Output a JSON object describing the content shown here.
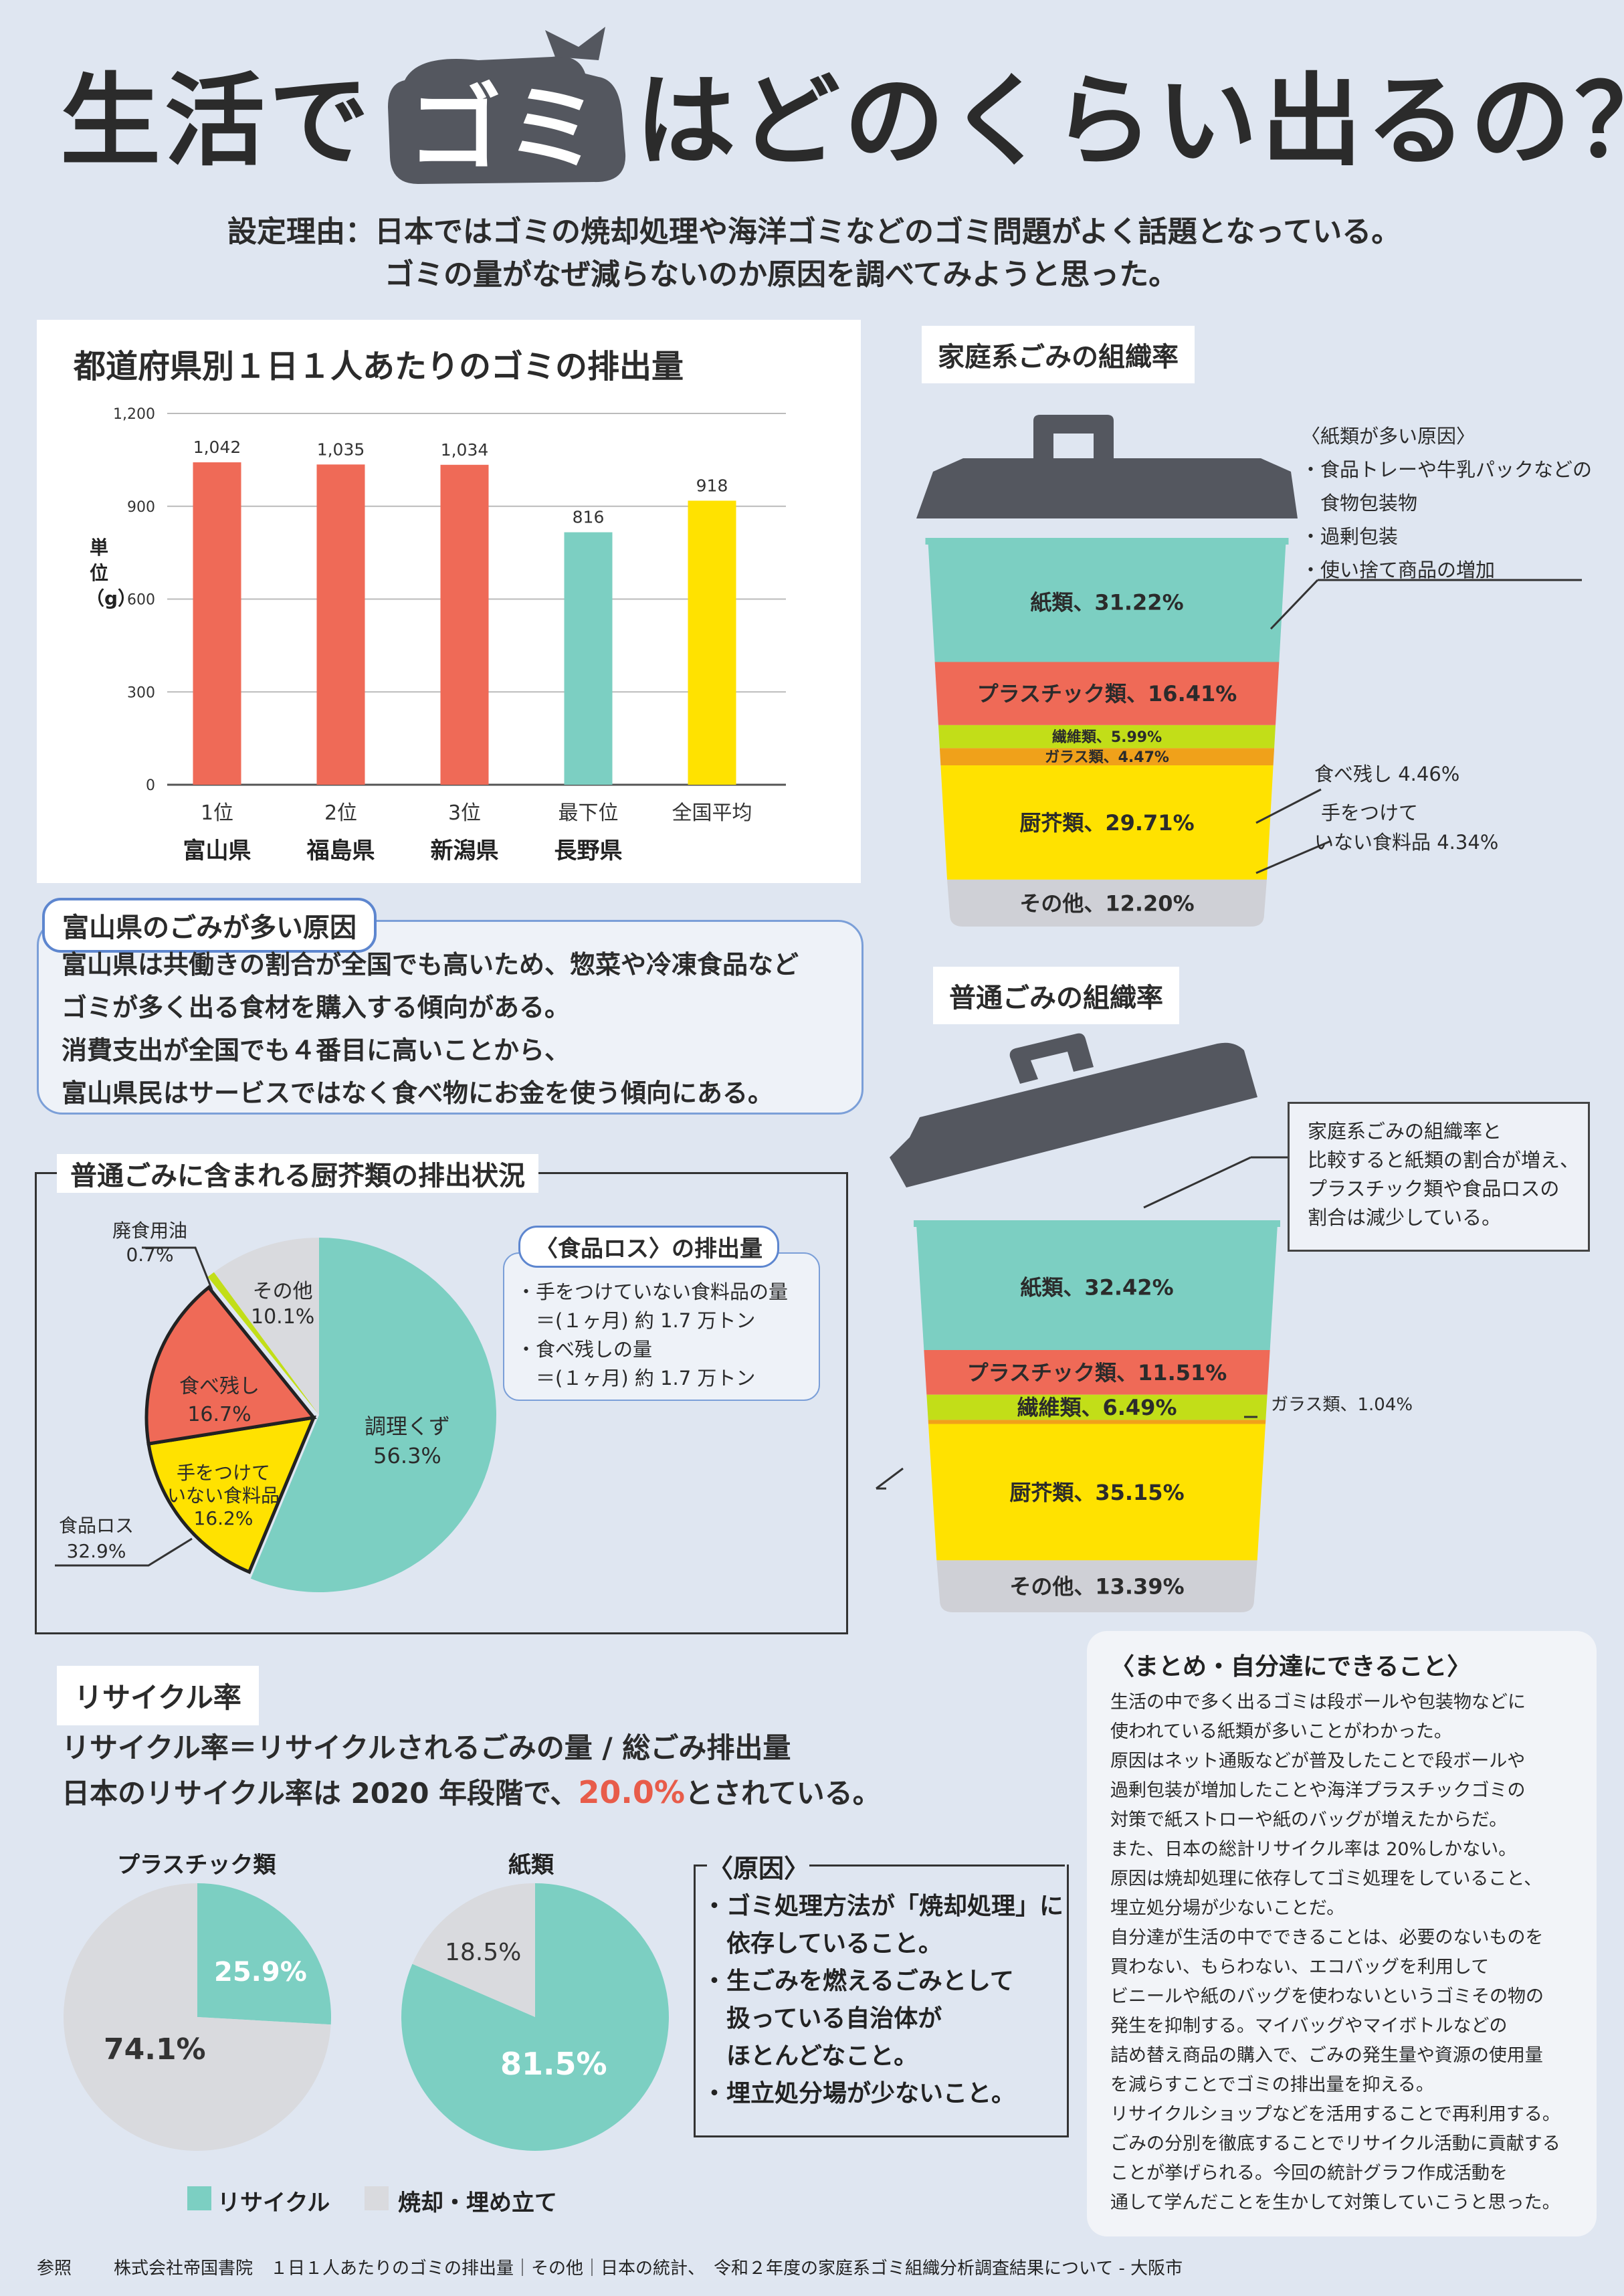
{
  "title": {
    "part1": "生活で",
    "highlight": "ゴミ",
    "part2": "はどのくらい出るの？"
  },
  "reason": {
    "line1": "設定理由：日本ではゴミの焼却処理や海洋ゴミなどのゴミ問題がよく話題となっている。",
    "line2": "ゴミの量がなぜ減らないのか原因を調べてみようと思った。"
  },
  "chart_data": [
    {
      "type": "bar",
      "title": "都道府県別１日１人あたりのゴミの排出量",
      "ylabel": "単位（g）",
      "ylim": [
        0,
        1200
      ],
      "yticks": [
        "0",
        "300",
        "600",
        "900",
        "1,200"
      ],
      "categories": [
        "1位 富山県",
        "2位 福島県",
        "3位 新潟県",
        "最下位 長野県",
        "全国平均"
      ],
      "rank_labels": [
        "1位",
        "2位",
        "3位",
        "最下位",
        "全国平均"
      ],
      "pref_labels": [
        "富山県",
        "福島県",
        "新潟県",
        "長野県",
        ""
      ],
      "values": [
        1042,
        1035,
        1034,
        816,
        918
      ],
      "value_labels": [
        "1,042",
        "1,035",
        "1,034",
        "816",
        "918"
      ],
      "colors": [
        "#ef6a57",
        "#ef6a57",
        "#ef6a57",
        "#7ccfc2",
        "#ffe200"
      ]
    },
    {
      "type": "bar",
      "subtype": "stacked-100",
      "title": "家庭系ごみの組織率",
      "segments": [
        {
          "name": "紙類",
          "value": 31.22,
          "label": "紙類、31.22%",
          "color": "#7ccfc2"
        },
        {
          "name": "プラスチック類",
          "value": 16.41,
          "label": "プラスチック類、16.41%",
          "color": "#ef6a57"
        },
        {
          "name": "繊維類",
          "value": 5.99,
          "label": "繊維類、5.99%",
          "color": "#c2de18"
        },
        {
          "name": "ガラス類",
          "value": 4.47,
          "label": "ガラス類、4.47%",
          "color": "#f0a11a"
        },
        {
          "name": "厨芥類",
          "value": 29.71,
          "label": "厨芥類、29.71%",
          "color": "#ffe200"
        },
        {
          "name": "その他",
          "value": 12.2,
          "label": "その他、12.20%",
          "color": "#cfd0d6"
        }
      ],
      "annotations": [
        "食べ残し 4.46%",
        "手をつけて",
        "いない食料品 4.34%"
      ]
    },
    {
      "type": "bar",
      "subtype": "stacked-100",
      "title": "普通ごみの組織率",
      "segments": [
        {
          "name": "紙類",
          "value": 32.42,
          "label": "紙類、32.42%",
          "color": "#7ccfc2"
        },
        {
          "name": "プラスチック類",
          "value": 11.51,
          "label": "プラスチック類、11.51%",
          "color": "#ef6a57"
        },
        {
          "name": "繊維類",
          "value": 6.49,
          "label": "繊維類、6.49%",
          "color": "#c2de18"
        },
        {
          "name": "ガラス類",
          "value": 1.04,
          "label": "ガラス類、1.04%",
          "color": "#f0a11a"
        },
        {
          "name": "厨芥類",
          "value": 35.15,
          "label": "厨芥類、35.15%",
          "color": "#ffe200"
        },
        {
          "name": "その他",
          "value": 13.39,
          "label": "その他、13.39%",
          "color": "#cfd0d6"
        }
      ]
    },
    {
      "type": "pie",
      "title": "普通ごみに含まれる厨芥類の排出状況",
      "slices": [
        {
          "name": "調理くず",
          "value": 56.3,
          "label": "56.3%",
          "color": "#7ccfc2"
        },
        {
          "name": "手をつけていない食料品",
          "value": 16.2,
          "label": "16.2%",
          "color": "#ffe200"
        },
        {
          "name": "食べ残し",
          "value": 16.7,
          "label": "16.7%",
          "color": "#ef6a57"
        },
        {
          "name": "廃食用油",
          "value": 0.7,
          "label": "0.7%",
          "color": "#c2de18"
        },
        {
          "name": "その他",
          "value": 10.1,
          "label": "10.1%",
          "color": "#d9dade"
        }
      ],
      "group_label": "食品ロス",
      "group_value": "32.9%"
    },
    {
      "type": "pie",
      "title": "プラスチック類",
      "slices": [
        {
          "name": "リサイクル",
          "value": 25.9,
          "label": "25.9%",
          "color": "#7ccfc2"
        },
        {
          "name": "焼却・埋め立て",
          "value": 74.1,
          "label": "74.1%",
          "color": "#d9dade"
        }
      ]
    },
    {
      "type": "pie",
      "title": "紙類",
      "slices": [
        {
          "name": "リサイクル",
          "value": 81.5,
          "label": "81.5%",
          "color": "#7ccfc2"
        },
        {
          "name": "焼却・埋め立て",
          "value": 18.5,
          "label": "18.5%",
          "color": "#d9dade"
        }
      ]
    }
  ],
  "household": {
    "note_title": "〈紙類が多い原因〉",
    "note_items": [
      "・食品トレーや牛乳パックなどの",
      "　食物包装物",
      "・過剰包装",
      "・使い捨て商品の増加"
    ],
    "food_left": "食べ残し 4.46%",
    "untouched_1": "手をつけて",
    "untouched_2": "いない食料品 4.34%"
  },
  "ordinary": {
    "note": [
      "家庭系ごみの組織率と",
      "比較すると紙類の割合が増え、",
      "プラスチック類や食品ロスの",
      "割合は減少している。"
    ],
    "glass_outside": "ガラス類、1.04%"
  },
  "toyama": {
    "title": "富山県のごみが多い原因",
    "lines": [
      "富山県は共働きの割合が全国でも高いため、惣菜や冷凍食品など",
      "ゴミが多く出る食材を購入する傾向がある。",
      "消費支出が全国でも４番目に高いことから、",
      "富山県民はサービスではなく食べ物にお金を使う傾向にある。"
    ]
  },
  "kitchen": {
    "labels": {
      "oil_1": "廃食用油",
      "oil_2": "0.7%",
      "other_1": "その他",
      "other_2": "10.1%",
      "left_1": "食べ残し",
      "left_2": "16.7%",
      "scrap_1": "調理くず",
      "scrap_2": "56.3%",
      "untouched_1": "手をつけて",
      "untouched_2": "いない食料品",
      "untouched_3": "16.2%",
      "loss_1": "食品ロス",
      "loss_2": "32.9%"
    },
    "loss_box_title": "〈食品ロス〉の排出量",
    "loss_box_lines": [
      "・手をつけていない食料品の量",
      "　＝(１ヶ月) 約 1.7 万トン",
      "・食べ残しの量",
      "　＝(１ヶ月) 約 1.7 万トン"
    ]
  },
  "recycle": {
    "title": "リサイクル率",
    "formula": "リサイクル率＝リサイクルされるごみの量 / 総ごみ排出量",
    "japan_prefix": "日本のリサイクル率は 2020 年段階で、",
    "japan_value": "20.0%",
    "japan_suffix": "とされている。",
    "legend_recycle": "リサイクル",
    "legend_burn": "焼却・埋め立て",
    "cause_title": "〈原因〉",
    "cause_lines": [
      "・ゴミ処理方法が「焼却処理」に",
      "　依存していること。",
      "・生ごみを燃えるごみとして",
      "　扱っている自治体が",
      "　ほとんどなこと。",
      "・埋立処分場が少ないこと。"
    ]
  },
  "summary": {
    "title": "〈まとめ・自分達にできること〉",
    "lines": [
      "生活の中で多く出るゴミは段ボールや包装物などに",
      "使われている紙類が多いことがわかった。",
      "原因はネット通販などが普及したことで段ボールや",
      "過剰包装が増加したことや海洋プラスチックゴミの",
      "対策で紙ストローや紙のバッグが増えたからだ。",
      "また、日本の総計リサイクル率は 20%しかない。",
      "原因は焼却処理に依存してゴミ処理をしていること、",
      "埋立処分場が少ないことだ。",
      "自分達が生活の中でできることは、必要のないものを",
      "買わない、もらわない、エコバッグを利用して",
      "ビニールや紙のバッグを使わないというゴミその物の",
      "発生を抑制する。マイバッグやマイボトルなどの",
      "詰め替え商品の購入で、ごみの発生量や資源の使用量",
      "を減らすことでゴミの排出量を抑える。",
      "リサイクルショップなどを活用することで再利用する。",
      "ごみの分別を徹底することでリサイクル活動に貢献する",
      "ことが挙げられる。今回の統計グラフ作成活動を",
      "通して学んだことを生かして対策していこうと思った。"
    ]
  },
  "footer": {
    "label": "参照",
    "text": "株式会社帝国書院　１日１人あたりのゴミの排出量｜その他｜日本の統計、　令和２年度の家庭系ゴミ組織分析調査結果について - 大阪市"
  },
  "colors": {
    "teal": "#7ccfc2",
    "red": "#ef6a57",
    "yellow": "#ffe200",
    "lime": "#c2de18",
    "orange": "#f0a11a",
    "gray": "#cfd0d6",
    "lid": "#54575f",
    "accent_red": "#e85c4a"
  }
}
